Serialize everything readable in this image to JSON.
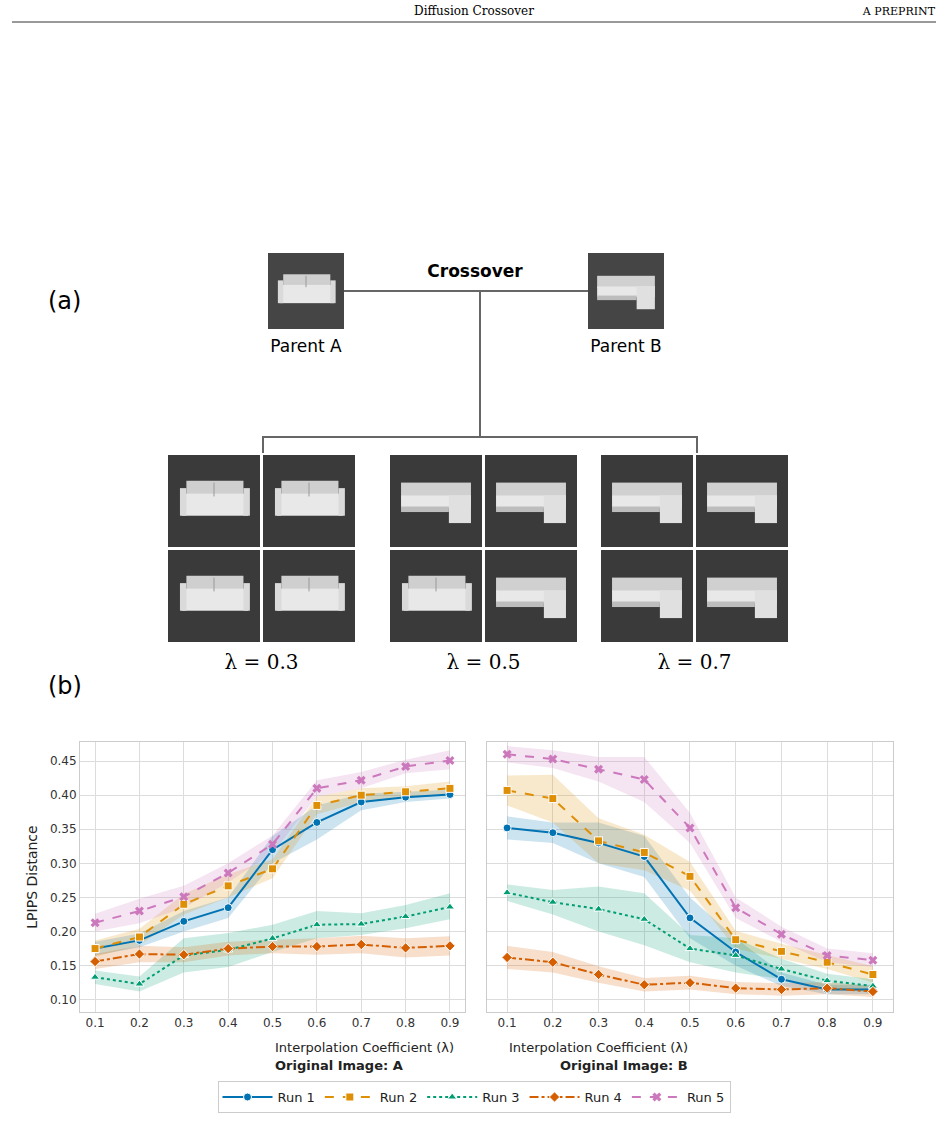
{
  "header": {
    "title": "Diffusion Crossover",
    "right": "A PREPRINT"
  },
  "panel_a": {
    "label": "(a)",
    "center_label": "Crossover",
    "parents": [
      "Parent A",
      "Parent B"
    ],
    "offspring_labels": [
      "λ = 0.3",
      "λ = 0.5",
      "λ = 0.7"
    ]
  },
  "panel_b": {
    "label": "(b)"
  },
  "chart_data": [
    {
      "type": "line",
      "title": "Original Image: A",
      "x_label": "Interpolation Coefficient (λ)",
      "y_label": "LPIPS Distance",
      "x": [
        0.1,
        0.2,
        0.3,
        0.4,
        0.5,
        0.6,
        0.7,
        0.8,
        0.9
      ],
      "xlim": [
        0.066,
        0.934
      ],
      "xticks": [
        0.1,
        0.2,
        0.3,
        0.4,
        0.5,
        0.6,
        0.7,
        0.8,
        0.9
      ],
      "ylim": [
        0.082,
        0.478
      ],
      "yticks": [
        {
          "value": 0.1,
          "label": "0.10"
        },
        0.15,
        {
          "value": 0.2,
          "label": "0.20"
        },
        0.25,
        {
          "value": 0.3,
          "label": "0.30"
        },
        0.35,
        {
          "value": 0.4,
          "label": "0.40"
        },
        0.45
      ],
      "grid": true,
      "legend": "bottom",
      "series": [
        {
          "name": "Run 1",
          "color": "#0173b2",
          "marker": "circle",
          "line_style": "solid",
          "values": [
            0.175,
            0.187,
            0.215,
            0.235,
            0.32,
            0.36,
            0.39,
            0.397,
            0.401
          ],
          "lower": [
            0.165,
            0.177,
            0.2,
            0.22,
            0.3,
            0.335,
            0.378,
            0.39,
            0.395
          ],
          "upper": [
            0.185,
            0.197,
            0.23,
            0.25,
            0.34,
            0.385,
            0.402,
            0.405,
            0.408
          ]
        },
        {
          "name": "Run 2",
          "color": "#de8f05",
          "marker": "square",
          "line_style": "dashed",
          "values": [
            0.175,
            0.192,
            0.24,
            0.267,
            0.292,
            0.385,
            0.4,
            0.405,
            0.41
          ],
          "lower": [
            0.163,
            0.18,
            0.225,
            0.25,
            0.278,
            0.372,
            0.39,
            0.397,
            0.4
          ],
          "upper": [
            0.187,
            0.204,
            0.255,
            0.284,
            0.306,
            0.398,
            0.41,
            0.413,
            0.42
          ]
        },
        {
          "name": "Run 3",
          "color": "#029e73",
          "marker": "triangle",
          "line_style": "dotted",
          "values": [
            0.133,
            0.123,
            0.165,
            0.173,
            0.19,
            0.21,
            0.211,
            0.222,
            0.236
          ],
          "lower": [
            0.123,
            0.112,
            0.14,
            0.148,
            0.17,
            0.19,
            0.195,
            0.205,
            0.218
          ],
          "upper": [
            0.143,
            0.134,
            0.19,
            0.198,
            0.21,
            0.23,
            0.227,
            0.239,
            0.256
          ]
        },
        {
          "name": "Run 4",
          "color": "#d55e00",
          "marker": "diamond",
          "line_style": "dashdot",
          "values": [
            0.156,
            0.167,
            0.166,
            0.175,
            0.178,
            0.178,
            0.181,
            0.176,
            0.179
          ],
          "lower": [
            0.145,
            0.155,
            0.155,
            0.165,
            0.168,
            0.166,
            0.168,
            0.162,
            0.165
          ],
          "upper": [
            0.167,
            0.179,
            0.177,
            0.185,
            0.188,
            0.19,
            0.194,
            0.19,
            0.193
          ]
        },
        {
          "name": "Run 5",
          "color": "#cc78bc",
          "marker": "x",
          "line_style": "dashed",
          "values": [
            0.213,
            0.23,
            0.251,
            0.286,
            0.328,
            0.41,
            0.422,
            0.442,
            0.451
          ],
          "lower": [
            0.2,
            0.212,
            0.235,
            0.272,
            0.315,
            0.398,
            0.41,
            0.432,
            0.438
          ],
          "upper": [
            0.226,
            0.248,
            0.267,
            0.3,
            0.341,
            0.422,
            0.434,
            0.452,
            0.466
          ]
        }
      ]
    },
    {
      "type": "line",
      "title": "Original Image: B",
      "x_label": "Interpolation Coefficient (λ)",
      "x": [
        0.1,
        0.2,
        0.3,
        0.4,
        0.5,
        0.6,
        0.7,
        0.8,
        0.9
      ],
      "xlim": [
        0.056,
        0.944
      ],
      "xticks": [
        0.1,
        0.2,
        0.3,
        0.4,
        0.5,
        0.6,
        0.7,
        0.8,
        0.9
      ],
      "ylim": [
        0.082,
        0.478
      ],
      "yticks": [
        0.1,
        0.15,
        0.2,
        0.25,
        0.3,
        0.35,
        0.4,
        0.45
      ],
      "tick_labels": "x",
      "grid": true,
      "legend": "bottom",
      "series": [
        {
          "name": "Run 1",
          "color": "#0173b2",
          "marker": "circle",
          "line_style": "solid",
          "values": [
            0.352,
            0.345,
            0.33,
            0.31,
            0.22,
            0.17,
            0.13,
            0.115,
            0.115
          ],
          "lower": [
            0.335,
            0.33,
            0.3,
            0.28,
            0.19,
            0.15,
            0.12,
            0.108,
            0.108
          ],
          "upper": [
            0.369,
            0.36,
            0.36,
            0.34,
            0.25,
            0.19,
            0.14,
            0.122,
            0.122
          ]
        },
        {
          "name": "Run 2",
          "color": "#de8f05",
          "marker": "square",
          "line_style": "dashed",
          "values": [
            0.407,
            0.395,
            0.333,
            0.316,
            0.281,
            0.188,
            0.171,
            0.155,
            0.137
          ],
          "lower": [
            0.385,
            0.36,
            0.3,
            0.29,
            0.26,
            0.175,
            0.16,
            0.145,
            0.125
          ],
          "upper": [
            0.429,
            0.43,
            0.366,
            0.342,
            0.302,
            0.201,
            0.182,
            0.165,
            0.149
          ]
        },
        {
          "name": "Run 3",
          "color": "#029e73",
          "marker": "triangle",
          "line_style": "dotted",
          "values": [
            0.257,
            0.243,
            0.233,
            0.218,
            0.175,
            0.165,
            0.145,
            0.128,
            0.12
          ],
          "lower": [
            0.245,
            0.225,
            0.2,
            0.18,
            0.155,
            0.14,
            0.13,
            0.118,
            0.11
          ],
          "upper": [
            0.269,
            0.261,
            0.266,
            0.256,
            0.195,
            0.19,
            0.16,
            0.138,
            0.13
          ]
        },
        {
          "name": "Run 4",
          "color": "#d55e00",
          "marker": "diamond",
          "line_style": "dashdot",
          "values": [
            0.162,
            0.155,
            0.137,
            0.122,
            0.125,
            0.117,
            0.115,
            0.117,
            0.112
          ],
          "lower": [
            0.145,
            0.14,
            0.125,
            0.112,
            0.115,
            0.108,
            0.106,
            0.108,
            0.104
          ],
          "upper": [
            0.179,
            0.17,
            0.149,
            0.132,
            0.135,
            0.126,
            0.124,
            0.126,
            0.12
          ]
        },
        {
          "name": "Run 5",
          "color": "#cc78bc",
          "marker": "x",
          "line_style": "dashed",
          "values": [
            0.46,
            0.453,
            0.438,
            0.423,
            0.352,
            0.235,
            0.196,
            0.165,
            0.158
          ],
          "lower": [
            0.448,
            0.44,
            0.42,
            0.39,
            0.33,
            0.22,
            0.185,
            0.155,
            0.148
          ],
          "upper": [
            0.472,
            0.466,
            0.456,
            0.456,
            0.374,
            0.25,
            0.207,
            0.175,
            0.168
          ]
        }
      ]
    }
  ]
}
